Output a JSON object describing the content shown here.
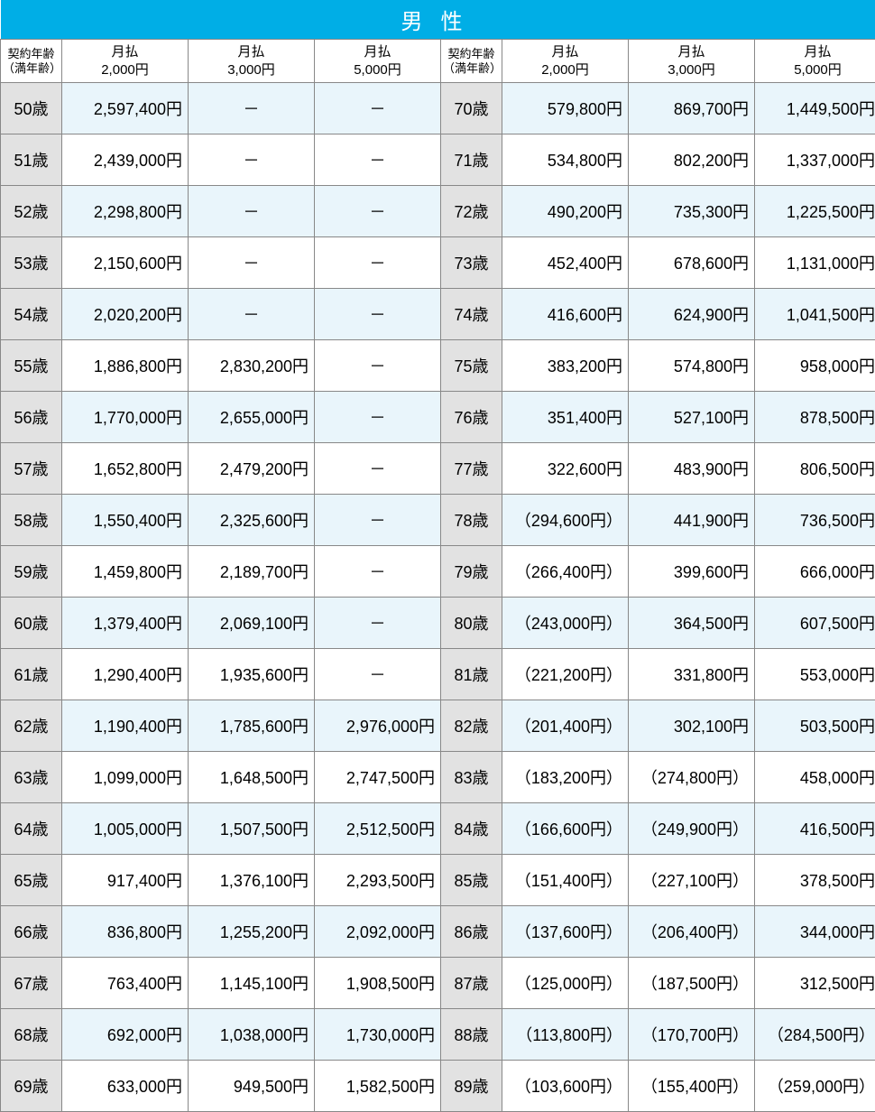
{
  "title": "男性",
  "headers": {
    "age_label_line1": "契約年齢",
    "age_label_line2": "（満年齢）",
    "col_prefix": "月払",
    "col_amounts": [
      "2,000円",
      "3,000円",
      "5,000円"
    ]
  },
  "colors": {
    "title_bg": "#00aee6",
    "title_text": "#ffffff",
    "age_bg": "#e2e2e2",
    "row_even_bg": "#e9f5fb",
    "row_odd_bg": "#ffffff",
    "border": "#888888"
  },
  "left_rows": [
    {
      "age": "50歳",
      "c1": "2,597,400円",
      "c2": "－",
      "c3": "－"
    },
    {
      "age": "51歳",
      "c1": "2,439,000円",
      "c2": "－",
      "c3": "－"
    },
    {
      "age": "52歳",
      "c1": "2,298,800円",
      "c2": "－",
      "c3": "－"
    },
    {
      "age": "53歳",
      "c1": "2,150,600円",
      "c2": "－",
      "c3": "－"
    },
    {
      "age": "54歳",
      "c1": "2,020,200円",
      "c2": "－",
      "c3": "－"
    },
    {
      "age": "55歳",
      "c1": "1,886,800円",
      "c2": "2,830,200円",
      "c3": "－"
    },
    {
      "age": "56歳",
      "c1": "1,770,000円",
      "c2": "2,655,000円",
      "c3": "－"
    },
    {
      "age": "57歳",
      "c1": "1,652,800円",
      "c2": "2,479,200円",
      "c3": "－"
    },
    {
      "age": "58歳",
      "c1": "1,550,400円",
      "c2": "2,325,600円",
      "c3": "－"
    },
    {
      "age": "59歳",
      "c1": "1,459,800円",
      "c2": "2,189,700円",
      "c3": "－"
    },
    {
      "age": "60歳",
      "c1": "1,379,400円",
      "c2": "2,069,100円",
      "c3": "－"
    },
    {
      "age": "61歳",
      "c1": "1,290,400円",
      "c2": "1,935,600円",
      "c3": "－"
    },
    {
      "age": "62歳",
      "c1": "1,190,400円",
      "c2": "1,785,600円",
      "c3": "2,976,000円"
    },
    {
      "age": "63歳",
      "c1": "1,099,000円",
      "c2": "1,648,500円",
      "c3": "2,747,500円"
    },
    {
      "age": "64歳",
      "c1": "1,005,000円",
      "c2": "1,507,500円",
      "c3": "2,512,500円"
    },
    {
      "age": "65歳",
      "c1": "917,400円",
      "c2": "1,376,100円",
      "c3": "2,293,500円"
    },
    {
      "age": "66歳",
      "c1": "836,800円",
      "c2": "1,255,200円",
      "c3": "2,092,000円"
    },
    {
      "age": "67歳",
      "c1": "763,400円",
      "c2": "1,145,100円",
      "c3": "1,908,500円"
    },
    {
      "age": "68歳",
      "c1": "692,000円",
      "c2": "1,038,000円",
      "c3": "1,730,000円"
    },
    {
      "age": "69歳",
      "c1": "633,000円",
      "c2": "949,500円",
      "c3": "1,582,500円"
    }
  ],
  "right_rows": [
    {
      "age": "70歳",
      "c1": "579,800円",
      "c2": "869,700円",
      "c3": "1,449,500円"
    },
    {
      "age": "71歳",
      "c1": "534,800円",
      "c2": "802,200円",
      "c3": "1,337,000円"
    },
    {
      "age": "72歳",
      "c1": "490,200円",
      "c2": "735,300円",
      "c3": "1,225,500円"
    },
    {
      "age": "73歳",
      "c1": "452,400円",
      "c2": "678,600円",
      "c3": "1,131,000円"
    },
    {
      "age": "74歳",
      "c1": "416,600円",
      "c2": "624,900円",
      "c3": "1,041,500円"
    },
    {
      "age": "75歳",
      "c1": "383,200円",
      "c2": "574,800円",
      "c3": "958,000円"
    },
    {
      "age": "76歳",
      "c1": "351,400円",
      "c2": "527,100円",
      "c3": "878,500円"
    },
    {
      "age": "77歳",
      "c1": "322,600円",
      "c2": "483,900円",
      "c3": "806,500円"
    },
    {
      "age": "78歳",
      "c1": "（294,600円）",
      "c2": "441,900円",
      "c3": "736,500円"
    },
    {
      "age": "79歳",
      "c1": "（266,400円）",
      "c2": "399,600円",
      "c3": "666,000円"
    },
    {
      "age": "80歳",
      "c1": "（243,000円）",
      "c2": "364,500円",
      "c3": "607,500円"
    },
    {
      "age": "81歳",
      "c1": "（221,200円）",
      "c2": "331,800円",
      "c3": "553,000円"
    },
    {
      "age": "82歳",
      "c1": "（201,400円）",
      "c2": "302,100円",
      "c3": "503,500円"
    },
    {
      "age": "83歳",
      "c1": "（183,200円）",
      "c2": "（274,800円）",
      "c3": "458,000円"
    },
    {
      "age": "84歳",
      "c1": "（166,600円）",
      "c2": "（249,900円）",
      "c3": "416,500円"
    },
    {
      "age": "85歳",
      "c1": "（151,400円）",
      "c2": "（227,100円）",
      "c3": "378,500円"
    },
    {
      "age": "86歳",
      "c1": "（137,600円）",
      "c2": "（206,400円）",
      "c3": "344,000円"
    },
    {
      "age": "87歳",
      "c1": "（125,000円）",
      "c2": "（187,500円）",
      "c3": "312,500円"
    },
    {
      "age": "88歳",
      "c1": "（113,800円）",
      "c2": "（170,700円）",
      "c3": "（284,500円）"
    },
    {
      "age": "89歳",
      "c1": "（103,600円）",
      "c2": "（155,400円）",
      "c3": "（259,000円）"
    }
  ]
}
